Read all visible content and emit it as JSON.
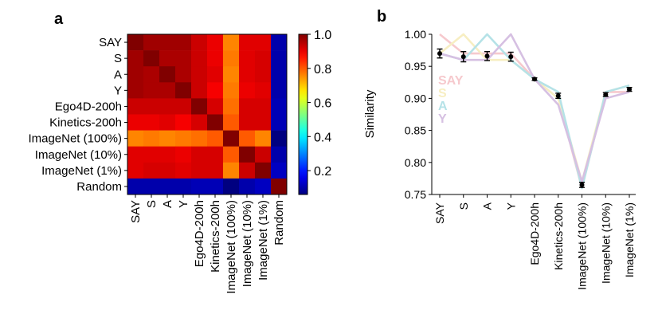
{
  "panels": {
    "a": "a",
    "b": "b"
  },
  "chart_data": [
    {
      "type": "heatmap",
      "panel": "a",
      "rows": [
        "SAY",
        "S",
        "A",
        "Y",
        "Ego4D-200h",
        "Kinetics-200h",
        "ImageNet (100%)",
        "ImageNet (10%)",
        "ImageNet (1%)",
        "Random"
      ],
      "cols": [
        "SAY",
        "S",
        "A",
        "Y",
        "Ego4D-200h",
        "Kinetics-200h",
        "ImageNet (100%)",
        "ImageNet (10%)",
        "ImageNet (1%)",
        "Random"
      ],
      "values": [
        [
          1.0,
          0.97,
          0.97,
          0.97,
          0.93,
          0.9,
          0.76,
          0.91,
          0.91,
          0.1
        ],
        [
          0.97,
          1.0,
          0.96,
          0.96,
          0.93,
          0.9,
          0.77,
          0.91,
          0.92,
          0.1
        ],
        [
          0.97,
          0.96,
          1.0,
          0.96,
          0.93,
          0.91,
          0.76,
          0.91,
          0.92,
          0.1
        ],
        [
          0.97,
          0.96,
          0.96,
          1.0,
          0.93,
          0.89,
          0.77,
          0.9,
          0.91,
          0.1
        ],
        [
          0.93,
          0.93,
          0.93,
          0.93,
          1.0,
          0.92,
          0.78,
          0.92,
          0.92,
          0.11
        ],
        [
          0.9,
          0.9,
          0.91,
          0.89,
          0.92,
          1.0,
          0.8,
          0.92,
          0.92,
          0.11
        ],
        [
          0.76,
          0.77,
          0.76,
          0.77,
          0.78,
          0.8,
          1.0,
          0.8,
          0.76,
          0.06
        ],
        [
          0.91,
          0.91,
          0.91,
          0.9,
          0.92,
          0.92,
          0.8,
          1.0,
          0.93,
          0.1
        ],
        [
          0.91,
          0.92,
          0.92,
          0.91,
          0.92,
          0.92,
          0.76,
          0.93,
          1.0,
          0.12
        ],
        [
          0.1,
          0.1,
          0.1,
          0.1,
          0.11,
          0.11,
          0.06,
          0.1,
          0.12,
          1.0
        ]
      ],
      "colormap": "jet",
      "colorbar": {
        "ticks": [
          0.2,
          0.4,
          0.6,
          0.8,
          1.0
        ],
        "tick_labels": [
          "0.2",
          "0.4",
          "0.6",
          "0.8",
          "1.0"
        ],
        "range": [
          0.06,
          1.0
        ]
      }
    },
    {
      "type": "line",
      "panel": "b",
      "categories": [
        "SAY",
        "S",
        "A",
        "Y",
        "Ego4D-200h",
        "Kinetics-200h",
        "ImageNet (100%)",
        "ImageNet (10%)",
        "ImageNet (1%)"
      ],
      "ylabel": "Similarity",
      "ylim": [
        0.75,
        1.0
      ],
      "yticks": [
        0.75,
        0.8,
        0.85,
        0.9,
        0.95,
        1.0
      ],
      "ytick_labels": [
        "0.75",
        "0.80",
        "0.85",
        "0.90",
        "0.95",
        "1.00"
      ],
      "mean": [
        0.97,
        0.965,
        0.966,
        0.965,
        0.93,
        0.904,
        0.765,
        0.906,
        0.914
      ],
      "error": [
        0.007,
        0.008,
        0.007,
        0.007,
        0.002,
        0.004,
        0.004,
        0.003,
        0.003
      ],
      "series": [
        {
          "name": "SAY",
          "color": "#f6c9cd",
          "values": [
            1.0,
            0.97,
            0.97,
            0.97,
            0.93,
            0.9,
            0.76,
            0.91,
            0.91
          ]
        },
        {
          "name": "S",
          "color": "#f7eec2",
          "values": [
            0.97,
            1.0,
            0.96,
            0.96,
            0.93,
            0.9,
            0.77,
            0.91,
            0.92
          ]
        },
        {
          "name": "A",
          "color": "#b5e2e7",
          "values": [
            0.97,
            0.96,
            1.0,
            0.96,
            0.93,
            0.91,
            0.76,
            0.91,
            0.92
          ]
        },
        {
          "name": "Y",
          "color": "#d6c0e2",
          "values": [
            0.97,
            0.96,
            0.96,
            1.0,
            0.93,
            0.89,
            0.77,
            0.9,
            0.91
          ]
        }
      ],
      "legend": "left"
    }
  ]
}
